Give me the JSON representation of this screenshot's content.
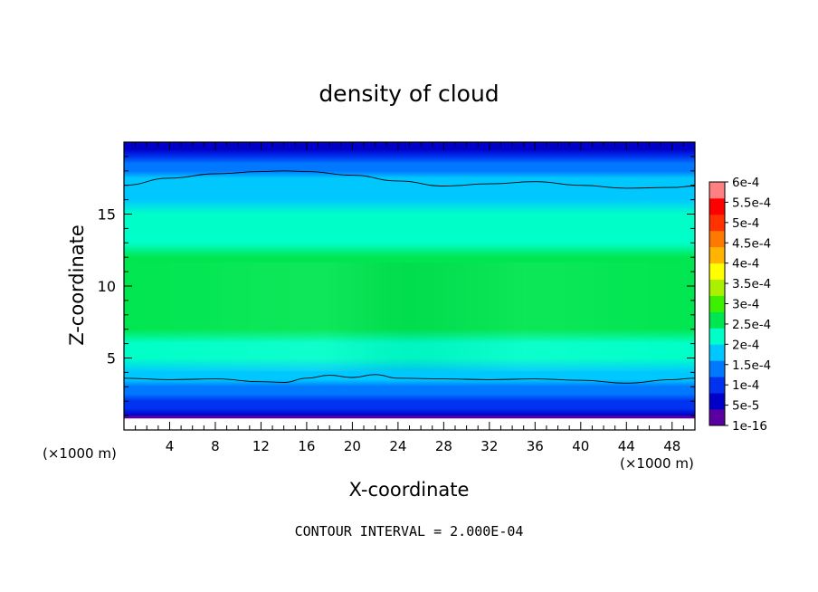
{
  "chart_data": {
    "type": "heatmap",
    "title": "density of cloud",
    "xlabel": "X-coordinate",
    "ylabel": "Z-coordinate",
    "x_unit_label_left": "(×1000 m)",
    "x_unit_label_right": "(×1000 m)",
    "footer": "CONTOUR INTERVAL = 2.000E-04",
    "xlim": [
      0,
      50
    ],
    "ylim": [
      0,
      20
    ],
    "x_ticks": [
      4,
      8,
      12,
      16,
      20,
      24,
      28,
      32,
      36,
      40,
      44,
      48
    ],
    "y_ticks": [
      5,
      10,
      15
    ],
    "colorbar": {
      "labels": [
        "6e-4",
        "5.5e-4",
        "5e-4",
        "4.5e-4",
        "4e-4",
        "3.5e-4",
        "3e-4",
        "2.5e-4",
        "2e-4",
        "1.5e-4",
        "1e-4",
        "5e-5",
        "1e-16"
      ],
      "colors": [
        "#5a00a0",
        "#0000c8",
        "#0032f0",
        "#0078ff",
        "#00c8ff",
        "#00ffc8",
        "#00e650",
        "#3cf000",
        "#aaf000",
        "#ffff00",
        "#ffb400",
        "#ff7800",
        "#ff3200",
        "#ff0000",
        "#ff8080"
      ]
    },
    "density_profile": {
      "z": [
        0.8,
        1.0,
        1.5,
        2.0,
        2.5,
        3.0,
        3.5,
        4.0,
        5.0,
        6.0,
        7.0,
        8.0,
        9.0,
        10.0,
        11.0,
        12.0,
        13.0,
        14.0,
        15.0,
        16.0,
        17.0,
        17.5,
        18.0,
        18.5,
        19.0,
        19.5,
        19.8
      ],
      "value": [
        1e-16,
        5e-05,
        0.0001,
        0.00013,
        0.00016,
        0.000185,
        0.0002,
        0.00022,
        0.00025,
        0.00028,
        0.0003,
        0.00031,
        0.00032,
        0.00032,
        0.00031,
        0.0003,
        0.00029,
        0.000275,
        0.00026,
        0.00024,
        0.00022,
        0.0002,
        0.00018,
        0.00015,
        0.00012,
        9e-05,
        6e-05
      ]
    },
    "contour_lines": [
      {
        "level": "2.000E-04",
        "x": [
          0,
          4,
          8,
          12,
          14,
          16,
          20,
          24,
          28,
          32,
          36,
          40,
          44,
          48,
          50
        ],
        "z": [
          17.0,
          17.5,
          17.8,
          17.95,
          18.0,
          17.95,
          17.7,
          17.3,
          16.95,
          17.1,
          17.25,
          17.0,
          16.8,
          16.85,
          16.95
        ]
      },
      {
        "level": "2.000E-04",
        "x": [
          0,
          4,
          8,
          12,
          14,
          16,
          18,
          20,
          22,
          24,
          28,
          32,
          36,
          40,
          44,
          48,
          50
        ],
        "z": [
          3.6,
          3.5,
          3.55,
          3.35,
          3.3,
          3.6,
          3.8,
          3.65,
          3.85,
          3.6,
          3.55,
          3.5,
          3.55,
          3.45,
          3.25,
          3.5,
          3.6
        ]
      }
    ]
  }
}
